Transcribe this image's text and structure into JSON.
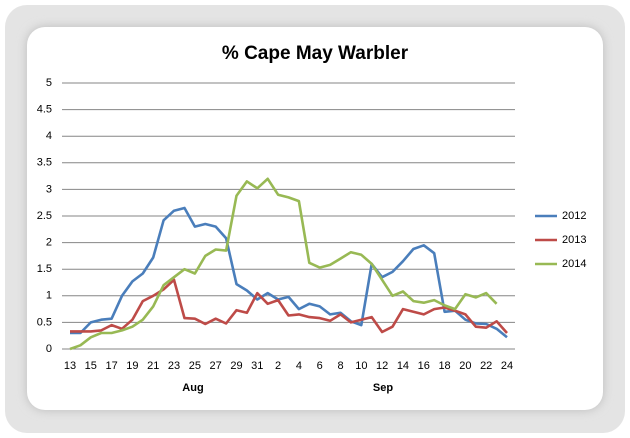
{
  "chart_data": {
    "type": "line",
    "title": "% Cape May Warbler",
    "categories": [
      "13",
      null,
      "15",
      null,
      "17",
      null,
      "19",
      null,
      "21",
      null,
      "23",
      null,
      "25",
      null,
      "27",
      null,
      "29",
      null,
      "31",
      null,
      "2",
      null,
      "4",
      null,
      "6",
      null,
      "8",
      null,
      "10",
      null,
      "12",
      null,
      "14",
      null,
      "16",
      null,
      "18",
      null,
      "20",
      null,
      "22",
      null,
      "24"
    ],
    "groups": [
      "Aug",
      "Sep"
    ],
    "series": [
      {
        "name": "2012",
        "color": "#4a7ebb",
        "values": [
          0.3,
          0.3,
          0.5,
          0.55,
          0.57,
          1.0,
          1.27,
          1.42,
          1.72,
          2.42,
          2.6,
          2.65,
          2.3,
          2.35,
          2.3,
          2.08,
          1.22,
          1.1,
          0.93,
          1.05,
          0.93,
          0.98,
          0.75,
          0.85,
          0.8,
          0.65,
          0.68,
          0.52,
          0.45,
          1.6,
          1.35,
          1.45,
          1.65,
          1.88,
          1.95,
          1.8,
          0.7,
          0.72,
          0.55,
          0.48,
          0.47,
          0.38,
          0.22
        ]
      },
      {
        "name": "2013",
        "color": "#be4b48",
        "values": [
          0.33,
          0.33,
          0.33,
          0.35,
          0.45,
          0.38,
          0.55,
          0.9,
          1.0,
          1.12,
          1.3,
          0.58,
          0.57,
          0.47,
          0.57,
          0.48,
          0.73,
          0.68,
          1.05,
          0.85,
          0.92,
          0.63,
          0.65,
          0.6,
          0.58,
          0.53,
          0.65,
          0.5,
          0.55,
          0.6,
          0.32,
          0.42,
          0.75,
          0.7,
          0.65,
          0.75,
          0.78,
          0.72,
          0.65,
          0.42,
          0.4,
          0.52,
          0.3
        ]
      },
      {
        "name": "2014",
        "color": "#98b954",
        "values": [
          0.0,
          0.07,
          0.22,
          0.3,
          0.3,
          0.35,
          0.42,
          0.55,
          0.8,
          1.2,
          1.35,
          1.5,
          1.42,
          1.75,
          1.87,
          1.85,
          2.88,
          3.15,
          3.02,
          3.2,
          2.9,
          2.85,
          2.78,
          1.62,
          1.53,
          1.58,
          1.7,
          1.82,
          1.77,
          1.6,
          1.3,
          1.0,
          1.08,
          0.9,
          0.87,
          0.92,
          0.82,
          0.75,
          1.03,
          0.97,
          1.05,
          0.85,
          null
        ]
      }
    ],
    "ylim": [
      0,
      5
    ],
    "yticks": [
      0,
      0.5,
      1,
      1.5,
      2,
      2.5,
      3,
      3.5,
      4,
      4.5,
      5
    ],
    "grid": true,
    "legend": "right"
  }
}
